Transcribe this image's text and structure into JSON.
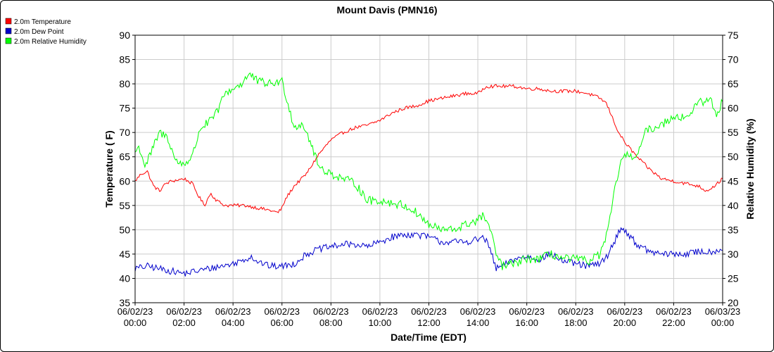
{
  "chart_data": {
    "type": "line",
    "title": "Mount Davis (PMN16)",
    "xlabel": "Date/Time (EDT)",
    "ylabel_left": "Temperature ( F)",
    "ylabel_right": "Relative Humidity (%)",
    "ylim_left": [
      35,
      90
    ],
    "ylim_right": [
      20,
      75
    ],
    "yticks_left": [
      35,
      40,
      45,
      50,
      55,
      60,
      65,
      70,
      75,
      80,
      85,
      90
    ],
    "yticks_right": [
      20,
      25,
      30,
      35,
      40,
      45,
      50,
      55,
      60,
      65,
      70,
      75
    ],
    "xlim": [
      "06/02/23 00:00",
      "06/03/23 00:00"
    ],
    "x_ticks": [
      {
        "date": "06/02/23",
        "time": "00:00"
      },
      {
        "date": "06/02/23",
        "time": "02:00"
      },
      {
        "date": "06/02/23",
        "time": "04:00"
      },
      {
        "date": "06/02/23",
        "time": "06:00"
      },
      {
        "date": "06/02/23",
        "time": "08:00"
      },
      {
        "date": "06/02/23",
        "time": "10:00"
      },
      {
        "date": "06/02/23",
        "time": "12:00"
      },
      {
        "date": "06/02/23",
        "time": "14:00"
      },
      {
        "date": "06/02/23",
        "time": "16:00"
      },
      {
        "date": "06/02/23",
        "time": "18:00"
      },
      {
        "date": "06/02/23",
        "time": "20:00"
      },
      {
        "date": "06/02/23",
        "time": "22:00"
      },
      {
        "date": "06/03/23",
        "time": "00:00"
      }
    ],
    "grid": true,
    "legend_position": "top-left",
    "series": [
      {
        "name": "2.0m Temperature",
        "color": "#ff0000",
        "axis": "left",
        "noise": 0.35,
        "points": [
          [
            "06/02/23 00:00",
            60
          ],
          [
            "06/02/23 00:15",
            61.5
          ],
          [
            "06/02/23 00:30",
            62
          ],
          [
            "06/02/23 00:45",
            59
          ],
          [
            "06/02/23 01:00",
            58
          ],
          [
            "06/02/23 01:15",
            59.5
          ],
          [
            "06/02/23 01:30",
            60
          ],
          [
            "06/02/23 02:00",
            60.5
          ],
          [
            "06/02/23 02:20",
            59.5
          ],
          [
            "06/02/23 02:35",
            57
          ],
          [
            "06/02/23 02:50",
            55
          ],
          [
            "06/02/23 03:05",
            57.5
          ],
          [
            "06/02/23 03:20",
            56
          ],
          [
            "06/02/23 03:40",
            55
          ],
          [
            "06/02/23 04:00",
            55
          ],
          [
            "06/02/23 04:30",
            55
          ],
          [
            "06/02/23 05:00",
            54.5
          ],
          [
            "06/02/23 05:30",
            54
          ],
          [
            "06/02/23 05:50",
            53.5
          ],
          [
            "06/02/23 06:00",
            54.5
          ],
          [
            "06/02/23 06:10",
            56.5
          ],
          [
            "06/02/23 06:30",
            59
          ],
          [
            "06/02/23 07:00",
            61.5
          ],
          [
            "06/02/23 07:30",
            65.5
          ],
          [
            "06/02/23 08:00",
            68.5
          ],
          [
            "06/02/23 08:30",
            70
          ],
          [
            "06/02/23 09:00",
            71
          ],
          [
            "06/02/23 09:30",
            71.5
          ],
          [
            "06/02/23 10:00",
            72.5
          ],
          [
            "06/02/23 10:30",
            74
          ],
          [
            "06/02/23 11:00",
            75
          ],
          [
            "06/02/23 11:30",
            75.5
          ],
          [
            "06/02/23 12:00",
            76.5
          ],
          [
            "06/02/23 12:30",
            77
          ],
          [
            "06/02/23 13:00",
            77.5
          ],
          [
            "06/02/23 13:30",
            78
          ],
          [
            "06/02/23 14:00",
            78
          ],
          [
            "06/02/23 14:20",
            79.5
          ],
          [
            "06/02/23 14:45",
            79.5
          ],
          [
            "06/02/23 15:00",
            79.5
          ],
          [
            "06/02/23 15:30",
            79.5
          ],
          [
            "06/02/23 16:00",
            79
          ],
          [
            "06/02/23 16:30",
            79
          ],
          [
            "06/02/23 17:00",
            78.5
          ],
          [
            "06/02/23 17:30",
            78.5
          ],
          [
            "06/02/23 18:00",
            78.5
          ],
          [
            "06/02/23 18:30",
            78
          ],
          [
            "06/02/23 19:00",
            77
          ],
          [
            "06/02/23 19:15",
            76
          ],
          [
            "06/02/23 19:30",
            73
          ],
          [
            "06/02/23 19:45",
            70
          ],
          [
            "06/02/23 20:00",
            68
          ],
          [
            "06/02/23 20:30",
            65
          ],
          [
            "06/02/23 21:00",
            62.5
          ],
          [
            "06/02/23 21:30",
            60.5
          ],
          [
            "06/02/23 22:00",
            60
          ],
          [
            "06/02/23 22:30",
            59.5
          ],
          [
            "06/02/23 23:00",
            59
          ],
          [
            "06/02/23 23:20",
            58
          ],
          [
            "06/02/23 23:40",
            59
          ],
          [
            "06/03/23 00:00",
            60.5
          ]
        ]
      },
      {
        "name": "2.0m Dew Point",
        "color": "#0000cc",
        "axis": "left",
        "noise": 0.7,
        "points": [
          [
            "06/02/23 00:00",
            42
          ],
          [
            "06/02/23 00:30",
            42.5
          ],
          [
            "06/02/23 01:00",
            42
          ],
          [
            "06/02/23 01:30",
            41.5
          ],
          [
            "06/02/23 02:00",
            41
          ],
          [
            "06/02/23 02:30",
            41.5
          ],
          [
            "06/02/23 03:00",
            42
          ],
          [
            "06/02/23 03:30",
            42.5
          ],
          [
            "06/02/23 04:00",
            43
          ],
          [
            "06/02/23 04:30",
            44
          ],
          [
            "06/02/23 04:45",
            44.5
          ],
          [
            "06/02/23 05:00",
            43.5
          ],
          [
            "06/02/23 05:30",
            42.5
          ],
          [
            "06/02/23 06:00",
            42.5
          ],
          [
            "06/02/23 06:30",
            43
          ],
          [
            "06/02/23 07:00",
            45
          ],
          [
            "06/02/23 07:30",
            46
          ],
          [
            "06/02/23 08:00",
            46.5
          ],
          [
            "06/02/23 08:30",
            47
          ],
          [
            "06/02/23 09:00",
            47
          ],
          [
            "06/02/23 09:30",
            46.5
          ],
          [
            "06/02/23 10:00",
            47.5
          ],
          [
            "06/02/23 10:30",
            48.5
          ],
          [
            "06/02/23 11:00",
            49
          ],
          [
            "06/02/23 11:30",
            49
          ],
          [
            "06/02/23 12:00",
            48.5
          ],
          [
            "06/02/23 12:30",
            47.5
          ],
          [
            "06/02/23 13:00",
            47.5
          ],
          [
            "06/02/23 13:30",
            47.5
          ],
          [
            "06/02/23 14:00",
            48
          ],
          [
            "06/02/23 14:15",
            48.5
          ],
          [
            "06/02/23 14:30",
            46
          ],
          [
            "06/02/23 14:45",
            42
          ],
          [
            "06/02/23 15:00",
            42.5
          ],
          [
            "06/02/23 15:30",
            44
          ],
          [
            "06/02/23 16:00",
            44.5
          ],
          [
            "06/02/23 16:30",
            44
          ],
          [
            "06/02/23 17:00",
            45
          ],
          [
            "06/02/23 17:30",
            43.5
          ],
          [
            "06/02/23 18:00",
            43
          ],
          [
            "06/02/23 18:30",
            42.5
          ],
          [
            "06/02/23 19:00",
            43
          ],
          [
            "06/02/23 19:20",
            45
          ],
          [
            "06/02/23 19:40",
            48.5
          ],
          [
            "06/02/23 19:50",
            50.5
          ],
          [
            "06/02/23 20:10",
            49
          ],
          [
            "06/02/23 20:30",
            47
          ],
          [
            "06/02/23 21:00",
            45.5
          ],
          [
            "06/02/23 21:30",
            45
          ],
          [
            "06/02/23 22:00",
            45
          ],
          [
            "06/02/23 22:30",
            45
          ],
          [
            "06/02/23 23:00",
            45.5
          ],
          [
            "06/02/23 23:30",
            45.5
          ],
          [
            "06/03/23 00:00",
            46
          ]
        ]
      },
      {
        "name": "2.0m Relative Humidity",
        "color": "#00ff00",
        "axis": "right",
        "noise": 0.9,
        "points": [
          [
            "06/02/23 00:00",
            51
          ],
          [
            "06/02/23 00:10",
            52
          ],
          [
            "06/02/23 00:25",
            48
          ],
          [
            "06/02/23 00:40",
            51
          ],
          [
            "06/02/23 01:00",
            55
          ],
          [
            "06/02/23 01:20",
            54
          ],
          [
            "06/02/23 01:40",
            49
          ],
          [
            "06/02/23 02:00",
            48.5
          ],
          [
            "06/02/23 02:20",
            50
          ],
          [
            "06/02/23 02:40",
            56
          ],
          [
            "06/02/23 03:00",
            57
          ],
          [
            "06/02/23 03:20",
            59
          ],
          [
            "06/02/23 03:40",
            63
          ],
          [
            "06/02/23 04:00",
            64
          ],
          [
            "06/02/23 04:20",
            65
          ],
          [
            "06/02/23 04:40",
            67
          ],
          [
            "06/02/23 05:00",
            65.5
          ],
          [
            "06/02/23 05:30",
            65
          ],
          [
            "06/02/23 06:00",
            65.5
          ],
          [
            "06/02/23 06:15",
            61
          ],
          [
            "06/02/23 06:30",
            56
          ],
          [
            "06/02/23 06:50",
            57
          ],
          [
            "06/02/23 07:10",
            53
          ],
          [
            "06/02/23 07:30",
            48
          ],
          [
            "06/02/23 08:00",
            46.5
          ],
          [
            "06/02/23 08:30",
            45.5
          ],
          [
            "06/02/23 09:00",
            44.5
          ],
          [
            "06/02/23 09:30",
            41
          ],
          [
            "06/02/23 10:00",
            41
          ],
          [
            "06/02/23 10:30",
            40.5
          ],
          [
            "06/02/23 11:00",
            40
          ],
          [
            "06/02/23 11:30",
            38.5
          ],
          [
            "06/02/23 12:00",
            36
          ],
          [
            "06/02/23 12:30",
            35
          ],
          [
            "06/02/23 13:00",
            35
          ],
          [
            "06/02/23 13:30",
            36
          ],
          [
            "06/02/23 14:00",
            37
          ],
          [
            "06/02/23 14:15",
            38
          ],
          [
            "06/02/23 14:30",
            35
          ],
          [
            "06/02/23 14:45",
            30
          ],
          [
            "06/02/23 15:00",
            27.5
          ],
          [
            "06/02/23 15:30",
            28
          ],
          [
            "06/02/23 16:00",
            29
          ],
          [
            "06/02/23 16:30",
            29
          ],
          [
            "06/02/23 17:00",
            30
          ],
          [
            "06/02/23 17:30",
            29
          ],
          [
            "06/02/23 18:00",
            29
          ],
          [
            "06/02/23 18:30",
            28.5
          ],
          [
            "06/02/23 19:00",
            30
          ],
          [
            "06/02/23 19:20",
            35
          ],
          [
            "06/02/23 19:35",
            43
          ],
          [
            "06/02/23 19:50",
            49
          ],
          [
            "06/02/23 20:10",
            50.5
          ],
          [
            "06/02/23 20:30",
            50
          ],
          [
            "06/02/23 20:50",
            55
          ],
          [
            "06/02/23 21:10",
            56
          ],
          [
            "06/02/23 21:30",
            56.5
          ],
          [
            "06/02/23 22:00",
            58.5
          ],
          [
            "06/02/23 22:30",
            58
          ],
          [
            "06/02/23 23:00",
            61
          ],
          [
            "06/02/23 23:30",
            62
          ],
          [
            "06/02/23 23:45",
            58
          ],
          [
            "06/03/23 00:00",
            62
          ]
        ]
      }
    ]
  }
}
